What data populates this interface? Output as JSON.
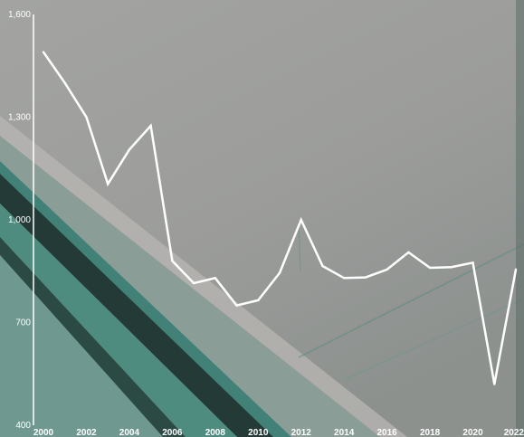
{
  "chart_data": {
    "type": "line",
    "title": "",
    "xlabel": "",
    "ylabel": "",
    "x": [
      2000,
      2001,
      2002,
      2003,
      2004,
      2005,
      2006,
      2007,
      2008,
      2009,
      2010,
      2011,
      2012,
      2013,
      2014,
      2015,
      2016,
      2017,
      2018,
      2019,
      2020,
      2021,
      2022
    ],
    "series": [
      {
        "values": [
          1490,
          1400,
          1300,
          1105,
          1205,
          1275,
          880,
          815,
          830,
          750,
          765,
          845,
          1000,
          865,
          830,
          832,
          855,
          905,
          860,
          862,
          875,
          520,
          855
        ],
        "color": "#ffffff"
      }
    ],
    "xlim": [
      2000,
      2022
    ],
    "ylim": [
      400,
      1600
    ],
    "yticks": [
      {
        "value": 400,
        "label": "400"
      },
      {
        "value": 700,
        "label": "700"
      },
      {
        "value": 1000,
        "label": "1,000"
      },
      {
        "value": 1300,
        "label": "1,300"
      },
      {
        "value": 1600,
        "label": "1,600"
      }
    ],
    "xticks": [
      {
        "value": 2000,
        "label": "2000"
      },
      {
        "value": 2002,
        "label": "2002"
      },
      {
        "value": 2004,
        "label": "2004"
      },
      {
        "value": 2006,
        "label": "2006"
      },
      {
        "value": 2008,
        "label": "2008"
      },
      {
        "value": 2010,
        "label": "2010"
      },
      {
        "value": 2012,
        "label": "2012"
      },
      {
        "value": 2014,
        "label": "2014"
      },
      {
        "value": 2016,
        "label": "2016"
      },
      {
        "value": 2018,
        "label": "2018"
      },
      {
        "value": 2020,
        "label": "2020"
      },
      {
        "value": 2022,
        "label": "2022"
      }
    ],
    "grid": false,
    "legend": "none",
    "background": "photo of grey wall with teal diagonal stripes"
  }
}
